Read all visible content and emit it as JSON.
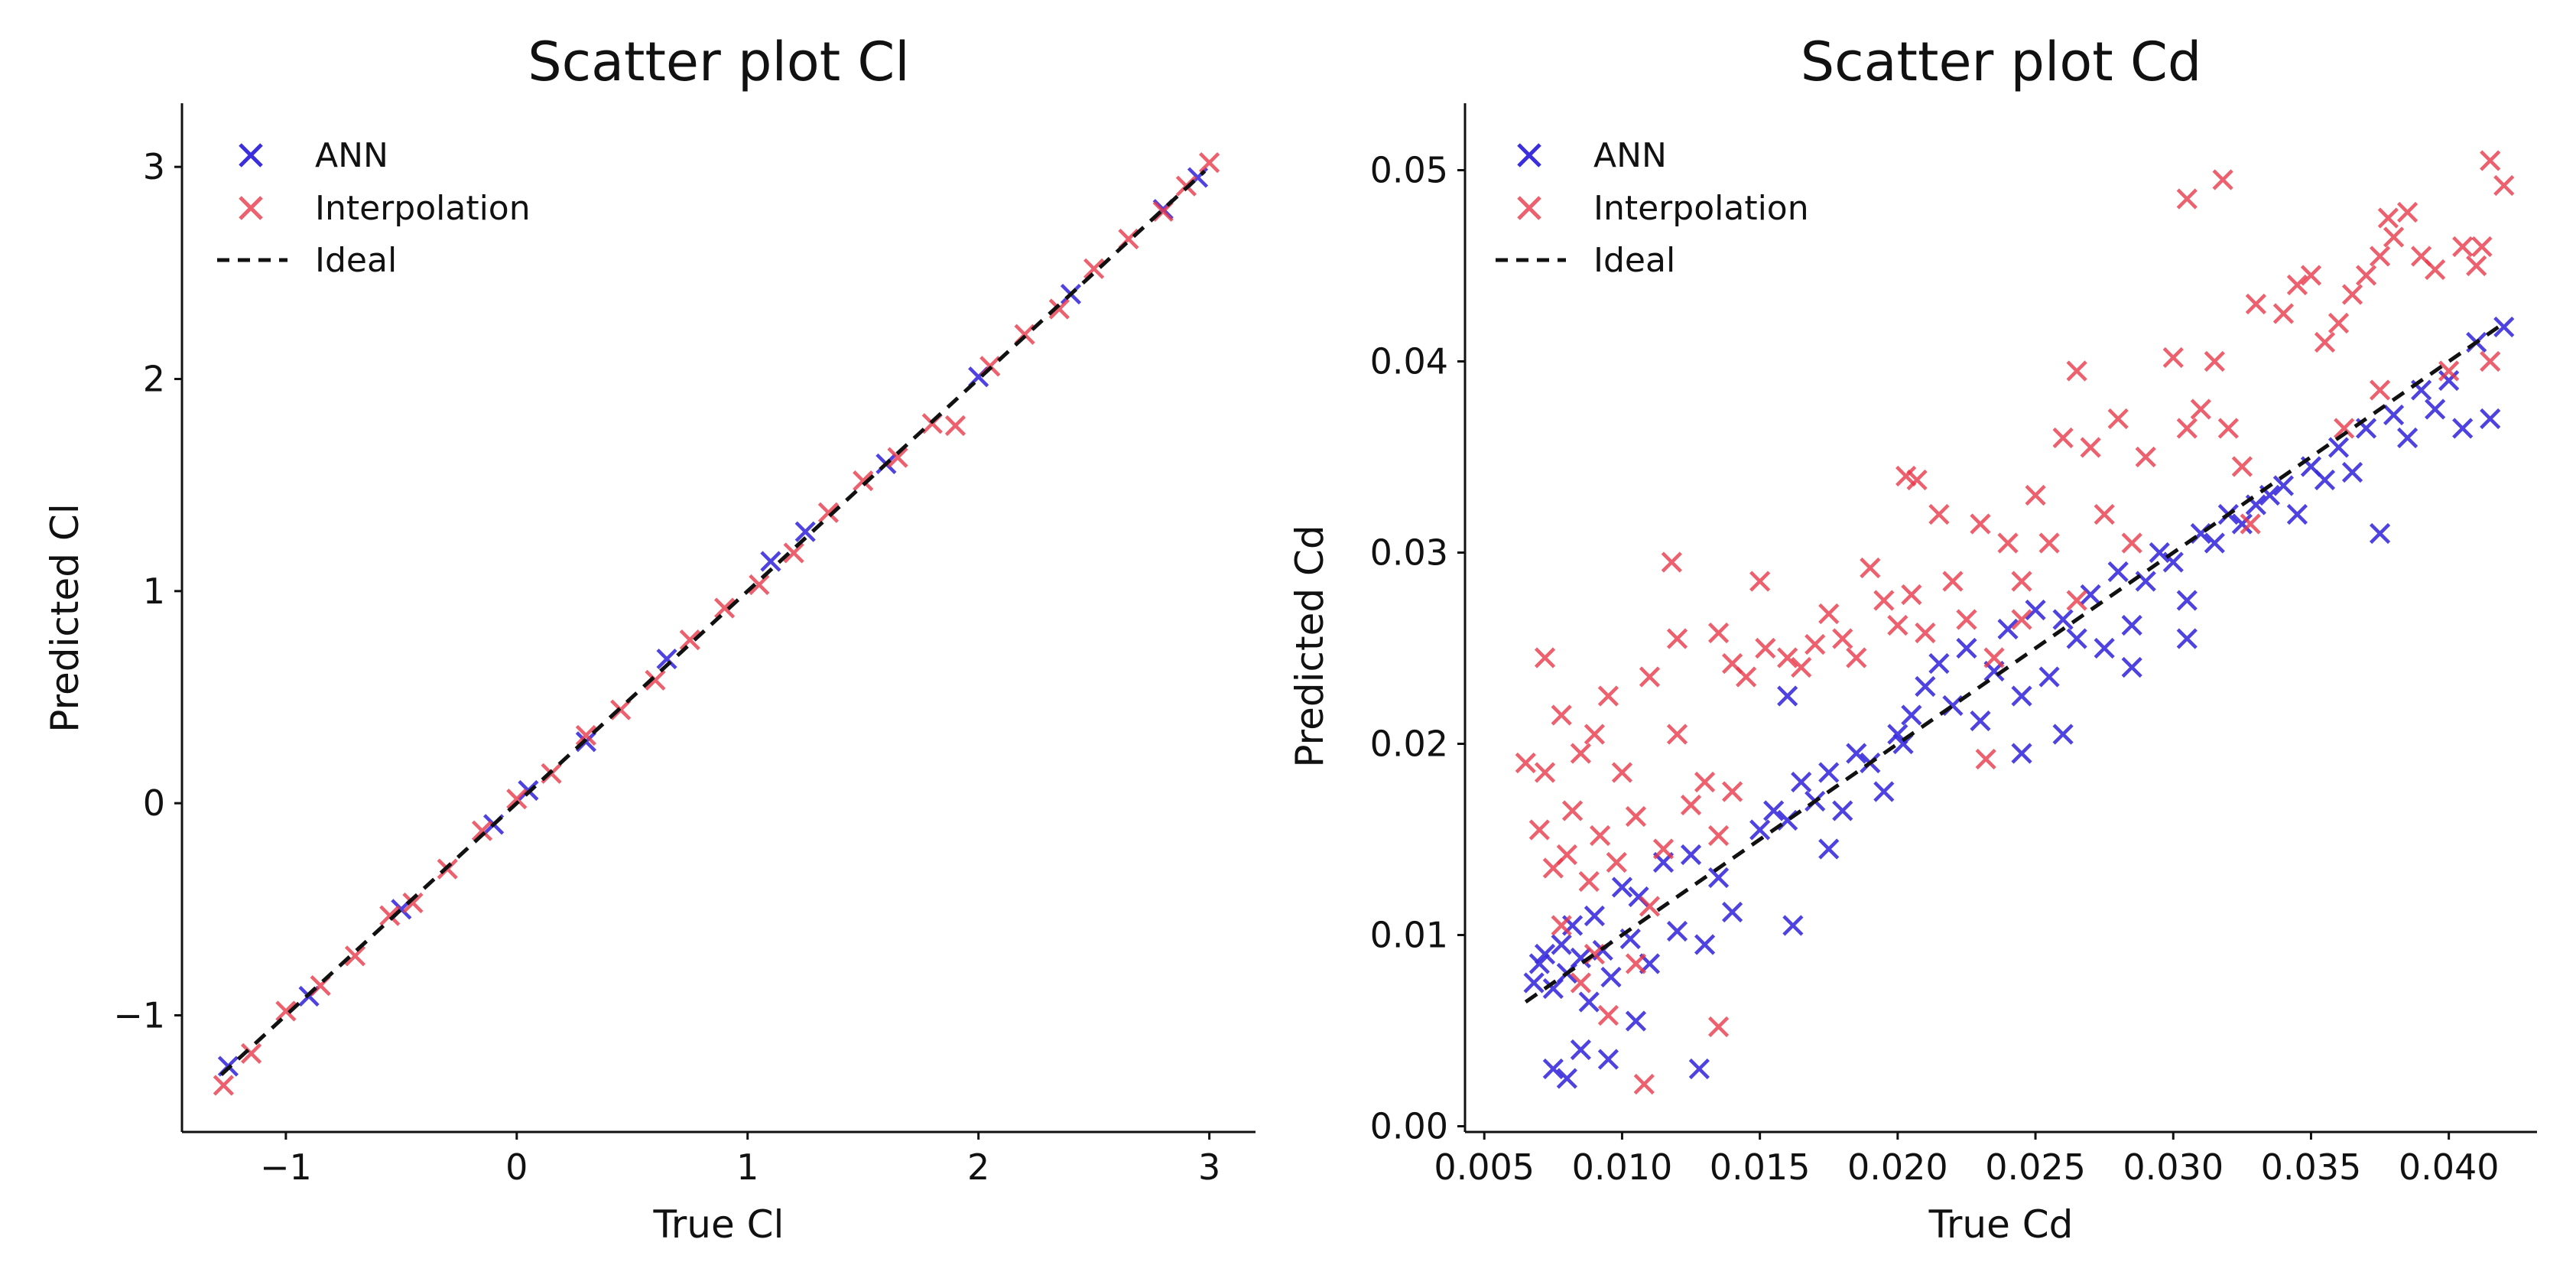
{
  "charts": [
    {
      "title": "Scatter plot Cl",
      "xlabel": "True Cl",
      "ylabel": "Predicted Cl",
      "xticks": [
        "−1",
        "0",
        "1",
        "2",
        "3"
      ],
      "yticks": [
        "−1",
        "0",
        "1",
        "2",
        "3"
      ],
      "legend": [
        "ANN",
        "Interpolation",
        "Ideal"
      ]
    },
    {
      "title": "Scatter plot Cd",
      "xlabel": "True Cd",
      "ylabel": "Predicted Cd",
      "xticks": [
        "0.005",
        "0.010",
        "0.015",
        "0.020",
        "0.025",
        "0.030",
        "0.035",
        "0.040"
      ],
      "yticks": [
        "0.00",
        "0.01",
        "0.02",
        "0.03",
        "0.04",
        "0.05"
      ],
      "legend": [
        "ANN",
        "Interpolation",
        "Ideal"
      ]
    }
  ],
  "chart_data": [
    {
      "type": "scatter",
      "title": "Scatter plot Cl",
      "xlabel": "True Cl",
      "ylabel": "Predicted Cl",
      "xlim": [
        -1.45,
        3.2
      ],
      "ylim": [
        -1.55,
        3.3
      ],
      "xticks": [
        -1,
        0,
        1,
        2,
        3
      ],
      "yticks": [
        -1,
        0,
        1,
        2,
        3
      ],
      "legend_position": "top-left",
      "colors": {
        "ann": "#3b2fdd",
        "interp": "#e8384a",
        "ideal": "#111111"
      },
      "series": [
        {
          "name": "ANN",
          "marker": "x",
          "x": [
            -1.25,
            -0.9,
            -0.5,
            -0.1,
            0.05,
            0.3,
            0.65,
            1.1,
            1.25,
            1.6,
            2.0,
            2.4,
            2.8,
            2.95
          ],
          "y": [
            -1.24,
            -0.91,
            -0.5,
            -0.1,
            0.06,
            0.29,
            0.68,
            1.14,
            1.28,
            1.6,
            2.01,
            2.4,
            2.8,
            2.95
          ]
        },
        {
          "name": "Interpolation",
          "marker": "x",
          "x": [
            -1.27,
            -1.15,
            -1.0,
            -0.85,
            -0.7,
            -0.55,
            -0.45,
            -0.3,
            -0.15,
            0.0,
            0.15,
            0.3,
            0.45,
            0.6,
            0.75,
            0.9,
            1.05,
            1.2,
            1.35,
            1.5,
            1.65,
            1.8,
            1.9,
            2.05,
            2.2,
            2.35,
            2.5,
            2.65,
            2.8,
            2.9,
            3.0
          ],
          "y": [
            -1.33,
            -1.18,
            -0.98,
            -0.86,
            -0.72,
            -0.53,
            -0.47,
            -0.31,
            -0.13,
            0.02,
            0.14,
            0.32,
            0.44,
            0.58,
            0.77,
            0.92,
            1.03,
            1.18,
            1.37,
            1.52,
            1.63,
            1.79,
            1.78,
            2.06,
            2.21,
            2.33,
            2.52,
            2.66,
            2.79,
            2.91,
            3.02
          ]
        },
        {
          "name": "Ideal",
          "type": "line",
          "x": [
            -1.28,
            2.98
          ],
          "y": [
            -1.28,
            2.98
          ]
        }
      ]
    },
    {
      "type": "scatter",
      "title": "Scatter plot Cd",
      "xlabel": "True Cd",
      "ylabel": "Predicted Cd",
      "xlim": [
        0.0043,
        0.0432
      ],
      "ylim": [
        -0.0003,
        0.0535
      ],
      "xticks": [
        0.005,
        0.01,
        0.015,
        0.02,
        0.025,
        0.03,
        0.035,
        0.04
      ],
      "yticks": [
        0.0,
        0.01,
        0.02,
        0.03,
        0.04,
        0.05
      ],
      "legend_position": "top-left",
      "colors": {
        "ann": "#3b2fdd",
        "interp": "#e8384a",
        "ideal": "#111111"
      },
      "series": [
        {
          "name": "ANN",
          "marker": "x",
          "x": [
            0.0068,
            0.007,
            0.0072,
            0.0075,
            0.0078,
            0.008,
            0.0082,
            0.0085,
            0.0088,
            0.009,
            0.0093,
            0.0096,
            0.01,
            0.0103,
            0.0106,
            0.011,
            0.0115,
            0.012,
            0.0125,
            0.013,
            0.0135,
            0.014,
            0.0075,
            0.008,
            0.0085,
            0.0095,
            0.0105,
            0.0128,
            0.015,
            0.0155,
            0.016,
            0.0165,
            0.017,
            0.0175,
            0.018,
            0.0185,
            0.019,
            0.0195,
            0.02,
            0.0205,
            0.021,
            0.0215,
            0.022,
            0.0225,
            0.023,
            0.0235,
            0.024,
            0.0245,
            0.025,
            0.0255,
            0.026,
            0.0265,
            0.027,
            0.0275,
            0.028,
            0.0285,
            0.029,
            0.0295,
            0.03,
            0.0305,
            0.031,
            0.0315,
            0.032,
            0.0325,
            0.033,
            0.0335,
            0.034,
            0.0345,
            0.035,
            0.0355,
            0.036,
            0.0365,
            0.037,
            0.0375,
            0.038,
            0.0385,
            0.039,
            0.0395,
            0.04,
            0.0405,
            0.041,
            0.0415,
            0.042,
            0.016,
            0.0162,
            0.0175,
            0.0202,
            0.0245,
            0.026,
            0.0285,
            0.0305
          ],
          "y": [
            0.0075,
            0.0085,
            0.009,
            0.0072,
            0.0095,
            0.008,
            0.0105,
            0.0088,
            0.0065,
            0.011,
            0.0092,
            0.0078,
            0.0125,
            0.0098,
            0.012,
            0.0085,
            0.0138,
            0.0102,
            0.0142,
            0.0095,
            0.013,
            0.0112,
            0.003,
            0.0025,
            0.004,
            0.0035,
            0.0055,
            0.003,
            0.0155,
            0.0165,
            0.016,
            0.018,
            0.017,
            0.0185,
            0.0165,
            0.0195,
            0.019,
            0.0175,
            0.0205,
            0.0215,
            0.023,
            0.0242,
            0.022,
            0.025,
            0.0212,
            0.0238,
            0.026,
            0.0225,
            0.027,
            0.0235,
            0.0265,
            0.0255,
            0.0278,
            0.025,
            0.029,
            0.0262,
            0.0285,
            0.03,
            0.0295,
            0.0275,
            0.031,
            0.0305,
            0.032,
            0.0315,
            0.0325,
            0.033,
            0.0335,
            0.032,
            0.0345,
            0.0338,
            0.0355,
            0.0342,
            0.0365,
            0.031,
            0.0372,
            0.036,
            0.0385,
            0.0375,
            0.039,
            0.0365,
            0.041,
            0.037,
            0.0418,
            0.0225,
            0.0105,
            0.0145,
            0.02,
            0.0195,
            0.0205,
            0.024,
            0.0255
          ]
        },
        {
          "name": "Interpolation",
          "marker": "x",
          "x": [
            0.0065,
            0.007,
            0.0072,
            0.0075,
            0.0078,
            0.008,
            0.0082,
            0.0085,
            0.0088,
            0.009,
            0.0092,
            0.0095,
            0.0098,
            0.01,
            0.0105,
            0.011,
            0.0115,
            0.012,
            0.0125,
            0.013,
            0.0135,
            0.014,
            0.0072,
            0.0078,
            0.0085,
            0.009,
            0.0095,
            0.0105,
            0.011,
            0.0118,
            0.012,
            0.0135,
            0.014,
            0.0145,
            0.015,
            0.0152,
            0.016,
            0.0165,
            0.017,
            0.0175,
            0.018,
            0.0185,
            0.019,
            0.0195,
            0.02,
            0.0205,
            0.021,
            0.0215,
            0.022,
            0.0225,
            0.023,
            0.0235,
            0.024,
            0.0245,
            0.025,
            0.0255,
            0.026,
            0.0265,
            0.027,
            0.0275,
            0.028,
            0.029,
            0.03,
            0.0305,
            0.031,
            0.0315,
            0.032,
            0.0325,
            0.033,
            0.034,
            0.0345,
            0.035,
            0.0355,
            0.036,
            0.0365,
            0.037,
            0.0375,
            0.038,
            0.0385,
            0.039,
            0.0395,
            0.04,
            0.0405,
            0.041,
            0.0415,
            0.042,
            0.0203,
            0.0207,
            0.0232,
            0.0305,
            0.0318,
            0.0378,
            0.0412,
            0.0415,
            0.0108,
            0.0135,
            0.0245,
            0.0265,
            0.0285,
            0.0328,
            0.0362,
            0.0375
          ],
          "y": [
            0.019,
            0.0155,
            0.0185,
            0.0135,
            0.0215,
            0.0142,
            0.0165,
            0.0195,
            0.0128,
            0.0205,
            0.0152,
            0.0225,
            0.0138,
            0.0185,
            0.0162,
            0.0235,
            0.0145,
            0.0205,
            0.0168,
            0.018,
            0.0152,
            0.0175,
            0.0245,
            0.0105,
            0.0075,
            0.009,
            0.0058,
            0.0085,
            0.0115,
            0.0295,
            0.0255,
            0.0258,
            0.0242,
            0.0235,
            0.0285,
            0.025,
            0.0245,
            0.024,
            0.0252,
            0.0268,
            0.0255,
            0.0245,
            0.0292,
            0.0275,
            0.0262,
            0.0278,
            0.0258,
            0.032,
            0.0285,
            0.0265,
            0.0315,
            0.0245,
            0.0305,
            0.0285,
            0.033,
            0.0305,
            0.036,
            0.0395,
            0.0355,
            0.032,
            0.037,
            0.035,
            0.0402,
            0.0365,
            0.0375,
            0.04,
            0.0365,
            0.0345,
            0.043,
            0.0425,
            0.044,
            0.0445,
            0.041,
            0.042,
            0.0435,
            0.0445,
            0.0455,
            0.0465,
            0.0478,
            0.0455,
            0.0448,
            0.0395,
            0.046,
            0.045,
            0.0505,
            0.0492,
            0.034,
            0.0338,
            0.0192,
            0.0485,
            0.0495,
            0.0475,
            0.046,
            0.04,
            0.0022,
            0.0052,
            0.0265,
            0.0275,
            0.0305,
            0.0315,
            0.0365,
            0.0385
          ]
        },
        {
          "name": "Ideal",
          "type": "line",
          "x": [
            0.0065,
            0.042
          ],
          "y": [
            0.0065,
            0.042
          ]
        }
      ]
    }
  ]
}
